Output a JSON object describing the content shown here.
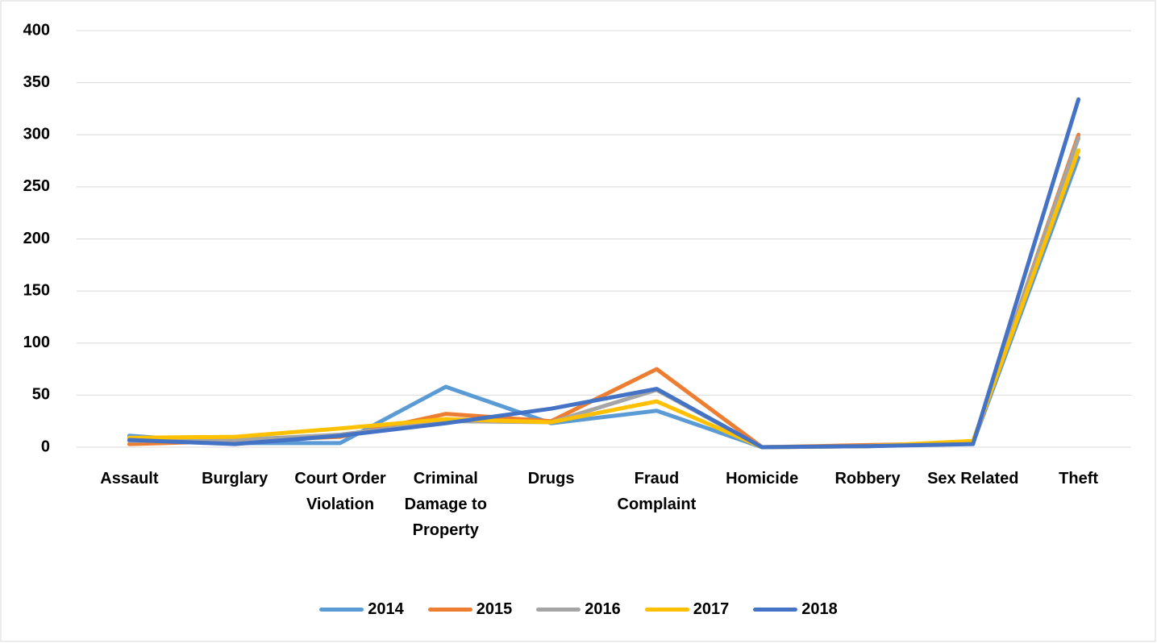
{
  "chart_data": {
    "type": "line",
    "categories": [
      "Assault",
      "Burglary",
      "Court Order Violation",
      "Criminal Damage to Property",
      "Drugs",
      "Fraud Complaint",
      "Homicide",
      "Robbery",
      "Sex Related",
      "Theft"
    ],
    "series": [
      {
        "name": "2014",
        "color": "#5b9bd5",
        "values": [
          11,
          4,
          4,
          58,
          23,
          35,
          0,
          1,
          4,
          278
        ]
      },
      {
        "name": "2015",
        "color": "#ed7d31",
        "values": [
          3,
          6,
          10,
          32,
          25,
          75,
          0,
          2,
          4,
          300
        ]
      },
      {
        "name": "2016",
        "color": "#a5a5a5",
        "values": [
          6,
          7,
          12,
          25,
          24,
          55,
          0,
          1,
          5,
          297
        ]
      },
      {
        "name": "2017",
        "color": "#ffc000",
        "values": [
          9,
          10,
          18,
          27,
          24,
          44,
          0,
          1,
          6,
          285
        ]
      },
      {
        "name": "2018",
        "color": "#4472c4",
        "values": [
          7,
          3,
          11,
          23,
          37,
          56,
          0,
          1,
          3,
          334
        ]
      }
    ],
    "ylim": [
      0,
      400
    ],
    "yticks": [
      0,
      50,
      100,
      150,
      200,
      250,
      300,
      350,
      400
    ],
    "grid": true,
    "legend": "bottom"
  }
}
